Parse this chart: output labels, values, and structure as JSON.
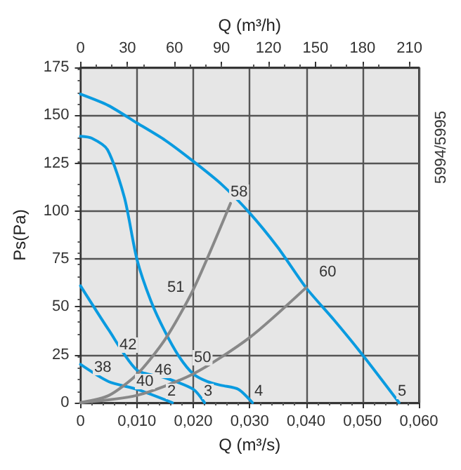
{
  "chart_data": {
    "type": "line",
    "xlabel": "Q (m³/s)",
    "x2label": "Q (m³/h)",
    "ylabel": "Ps(Pa)",
    "xlim": [
      0,
      0.06
    ],
    "xticks": [
      0,
      {
        "value": 0.01,
        "label": "0,010"
      },
      {
        "value": 0.02,
        "label": "0,020"
      },
      {
        "value": 0.03,
        "label": "0,030"
      },
      {
        "value": 0.04,
        "label": "0,040"
      },
      {
        "value": 0.05,
        "label": "0,050"
      },
      {
        "value": 0.06,
        "label": "0,060"
      }
    ],
    "x2lim": [
      0,
      216
    ],
    "x2ticks": [
      0,
      30,
      60,
      90,
      120,
      150,
      180,
      210
    ],
    "ylim": [
      0,
      175
    ],
    "yticks": [
      0,
      25,
      50,
      75,
      100,
      125,
      150,
      175
    ],
    "grid": true,
    "marker": "none",
    "line_style": "solid",
    "series": [
      {
        "color": "#0a9be0",
        "x": [
          0,
          0.005,
          0.01,
          0.015,
          0.02,
          0.025,
          0.03,
          0.035,
          0.04,
          0.045,
          0.05,
          0.0565
        ],
        "values": [
          161,
          155,
          146,
          137,
          126,
          114,
          99,
          81,
          60,
          43,
          25,
          0
        ]
      },
      {
        "color": "#0a9be0",
        "x": [
          0,
          0.002,
          0.0048,
          0.0078,
          0.01,
          0.0125,
          0.015,
          0.0175,
          0.02,
          0.0225,
          0.025,
          0.028,
          0.0305
        ],
        "values": [
          139,
          138,
          132,
          107,
          75,
          53,
          37,
          24,
          15,
          11,
          9,
          7,
          0
        ]
      },
      {
        "color": "#0a9be0",
        "x": [
          0,
          0.005,
          0.01,
          0.015,
          0.02,
          0.022
        ],
        "values": [
          61,
          38,
          17,
          13,
          7,
          0
        ]
      },
      {
        "color": "#0a9be0",
        "x": [
          0,
          0.005,
          0.01,
          0.0163
        ],
        "values": [
          20,
          11,
          7,
          0
        ]
      },
      {
        "color": "#888888",
        "x": [
          0,
          0.005,
          0.01,
          0.015,
          0.02,
          0.0266
        ],
        "values": [
          0,
          3.7,
          14.7,
          33,
          59,
          104
        ]
      },
      {
        "color": "#888888",
        "x": [
          0,
          0.01,
          0.02,
          0.03,
          0.04
        ],
        "values": [
          0,
          3.8,
          15,
          34,
          60
        ]
      }
    ],
    "annotations": [
      "58",
      "60",
      "51",
      "42",
      "38",
      "40",
      "46",
      "50",
      "2",
      "3",
      "4",
      "5",
      "5994/5995"
    ]
  }
}
